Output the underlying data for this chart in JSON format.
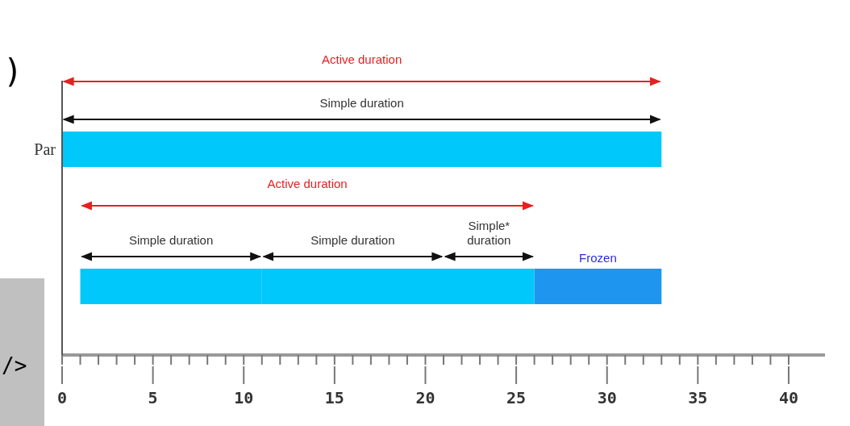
{
  "chart_data": {
    "type": "bar",
    "orientation": "horizontal",
    "categories": [
      "Par",
      null
    ],
    "series": [
      {
        "color": "#00c8fa",
        "base": [
          0,
          1
        ],
        "values": [
          33,
          10
        ]
      },
      {
        "color": "#00c8fa",
        "base": [
          null,
          11
        ],
        "values": [
          null,
          10
        ]
      },
      {
        "color": "#00c8fa",
        "base": [
          null,
          21
        ],
        "values": [
          null,
          5
        ]
      },
      {
        "name": "Frozen",
        "color": "#1e96f0",
        "base": [
          null,
          26
        ],
        "values": [
          null,
          7
        ]
      }
    ],
    "xlim": [
      0,
      42
    ],
    "xticks": [
      0,
      {
        "value": 1,
        "label": null
      },
      {
        "value": 2,
        "label": null
      },
      {
        "value": 3,
        "label": null
      },
      {
        "value": 4,
        "label": null
      },
      5,
      {
        "value": 6,
        "label": null
      },
      {
        "value": 7,
        "label": null
      },
      {
        "value": 8,
        "label": null
      },
      {
        "value": 9,
        "label": null
      },
      10,
      {
        "value": 11,
        "label": null
      },
      {
        "value": 12,
        "label": null
      },
      {
        "value": 13,
        "label": null
      },
      {
        "value": 14,
        "label": null
      },
      15,
      {
        "value": 16,
        "label": null
      },
      {
        "value": 17,
        "label": null
      },
      {
        "value": 18,
        "label": null
      },
      {
        "value": 19,
        "label": null
      },
      20,
      {
        "value": 21,
        "label": null
      },
      {
        "value": 22,
        "label": null
      },
      {
        "value": 23,
        "label": null
      },
      {
        "value": 24,
        "label": null
      },
      25,
      {
        "value": 26,
        "label": null
      },
      {
        "value": 27,
        "label": null
      },
      {
        "value": 28,
        "label": null
      },
      {
        "value": 29,
        "label": null
      },
      30,
      {
        "value": 31,
        "label": null
      },
      {
        "value": 32,
        "label": null
      },
      {
        "value": 33,
        "label": null
      },
      {
        "value": 34,
        "label": null
      },
      35,
      {
        "value": 36,
        "label": null
      },
      {
        "value": 37,
        "label": null
      },
      {
        "value": 38,
        "label": null
      },
      {
        "value": 39,
        "label": null
      },
      40
    ],
    "annotations": [
      "Active duration",
      "Simple duration",
      "Active duration",
      "Simple duration",
      "Simple duration",
      "Simple* duration",
      ")",
      "/>"
    ]
  }
}
